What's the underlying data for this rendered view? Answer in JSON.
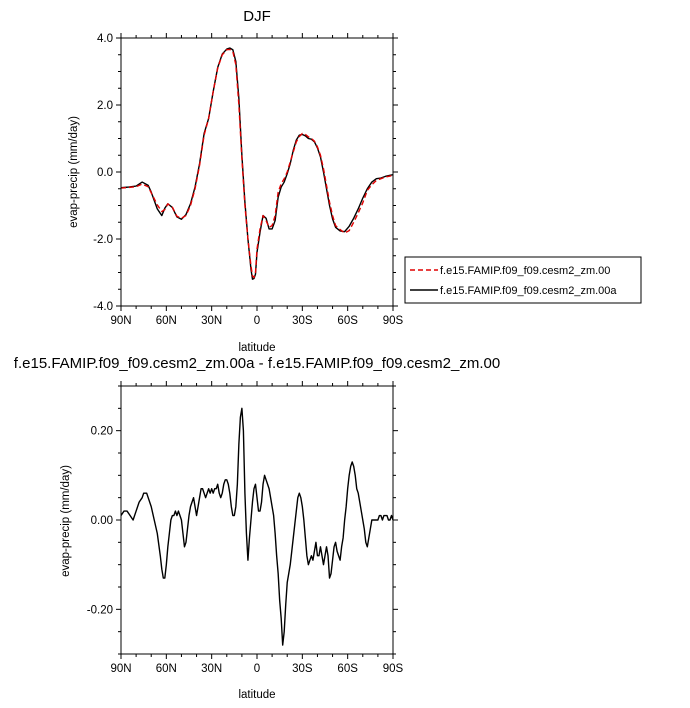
{
  "chart_data": [
    {
      "type": "line",
      "title": "DJF",
      "xlabel": "latitude",
      "ylabel": "evap-precip (mm/day)",
      "xlim": [
        90,
        -90
      ],
      "ylim": [
        -4.0,
        4.0
      ],
      "xticks": [
        {
          "value": 90,
          "label": "90N"
        },
        {
          "value": 60,
          "label": "60N"
        },
        {
          "value": 30,
          "label": "30N"
        },
        {
          "value": 0,
          "label": "0"
        },
        {
          "value": -30,
          "label": "30S"
        },
        {
          "value": -60,
          "label": "60S"
        },
        {
          "value": -90,
          "label": "90S"
        }
      ],
      "yticks": [
        {
          "value": 4.0,
          "label": "4.0"
        },
        {
          "value": 2.0,
          "label": "2.0"
        },
        {
          "value": 0.0,
          "label": "0.0"
        },
        {
          "value": -2.0,
          "label": "-2.0"
        },
        {
          "value": -4.0,
          "label": "-4.0"
        }
      ],
      "legend_position": "right",
      "series": [
        {
          "name": "f.e15.FAMIP.f09_f09.cesm2_zm.00",
          "color": "#e00000",
          "dash": "dashed",
          "x": [
            90,
            85,
            80,
            76,
            72,
            70,
            66,
            63,
            61,
            59,
            56,
            53,
            50,
            47,
            44,
            41,
            38,
            35,
            32,
            29,
            26,
            23,
            20,
            18,
            16,
            14,
            12,
            10,
            8,
            6,
            4,
            3,
            2,
            1,
            0,
            -2,
            -4,
            -6,
            -8,
            -10,
            -12,
            -14,
            -16,
            -18,
            -20,
            -22,
            -24,
            -26,
            -28,
            -30,
            -32,
            -34,
            -36,
            -38,
            -40,
            -42,
            -44,
            -46,
            -48,
            -50,
            -52,
            -55,
            -58,
            -61,
            -64,
            -67,
            -70,
            -73,
            -76,
            -79,
            -82,
            -85,
            -88,
            -90
          ],
          "y": [
            -0.48,
            -0.46,
            -0.44,
            -0.36,
            -0.44,
            -0.62,
            -0.98,
            -1.18,
            -1.12,
            -0.95,
            -1.05,
            -1.32,
            -1.38,
            -1.3,
            -1.0,
            -0.5,
            0.2,
            1.1,
            1.6,
            2.4,
            3.1,
            3.5,
            3.65,
            3.66,
            3.6,
            3.2,
            2.0,
            0.4,
            -1.0,
            -2.0,
            -2.8,
            -3.1,
            -3.15,
            -3.0,
            -2.3,
            -1.7,
            -1.3,
            -1.45,
            -1.65,
            -1.6,
            -1.3,
            -0.6,
            -0.35,
            -0.2,
            0.0,
            0.3,
            0.6,
            0.9,
            1.06,
            1.15,
            1.12,
            1.05,
            1.0,
            0.92,
            0.75,
            0.5,
            0.1,
            -0.4,
            -0.9,
            -1.3,
            -1.6,
            -1.72,
            -1.82,
            -1.75,
            -1.5,
            -1.22,
            -0.92,
            -0.55,
            -0.38,
            -0.25,
            -0.2,
            -0.15,
            -0.12,
            -0.1
          ]
        },
        {
          "name": "f.e15.FAMIP.f09_f09.cesm2_zm.00a",
          "color": "#000000",
          "dash": "solid",
          "x": [
            90,
            85,
            80,
            76,
            72,
            70,
            66,
            63,
            61,
            59,
            56,
            53,
            50,
            47,
            44,
            41,
            38,
            35,
            32,
            29,
            26,
            23,
            20,
            18,
            16,
            14,
            12,
            10,
            8,
            6,
            4,
            3,
            2,
            1,
            0,
            -2,
            -4,
            -6,
            -8,
            -10,
            -12,
            -14,
            -16,
            -18,
            -20,
            -22,
            -24,
            -26,
            -28,
            -30,
            -32,
            -34,
            -36,
            -38,
            -40,
            -42,
            -44,
            -46,
            -48,
            -50,
            -52,
            -55,
            -58,
            -61,
            -64,
            -67,
            -70,
            -73,
            -76,
            -79,
            -82,
            -85,
            -88,
            -90
          ],
          "y": [
            -0.47,
            -0.45,
            -0.42,
            -0.3,
            -0.4,
            -0.6,
            -1.1,
            -1.3,
            -1.08,
            -0.95,
            -1.06,
            -1.34,
            -1.41,
            -1.27,
            -0.95,
            -0.45,
            0.25,
            1.15,
            1.6,
            2.4,
            3.12,
            3.52,
            3.67,
            3.7,
            3.65,
            3.3,
            2.2,
            0.5,
            -0.9,
            -2.0,
            -2.9,
            -3.2,
            -3.18,
            -3.05,
            -2.4,
            -1.8,
            -1.3,
            -1.38,
            -1.7,
            -1.7,
            -1.45,
            -0.75,
            -0.45,
            -0.3,
            -0.05,
            0.25,
            0.65,
            0.95,
            1.1,
            1.12,
            1.08,
            1.0,
            0.98,
            0.9,
            0.72,
            0.45,
            0.0,
            -0.5,
            -1.0,
            -1.4,
            -1.65,
            -1.76,
            -1.78,
            -1.62,
            -1.38,
            -1.1,
            -0.78,
            -0.5,
            -0.3,
            -0.2,
            -0.18,
            -0.13,
            -0.1,
            -0.08
          ]
        }
      ]
    },
    {
      "type": "line",
      "title": "f.e15.FAMIP.f09_f09.cesm2_zm.00a - f.e15.FAMIP.f09_f09.cesm2_zm.00",
      "xlabel": "latitude",
      "ylabel": "evap-precip (mm/day)",
      "xlim": [
        90,
        -90
      ],
      "ylim": [
        -0.3,
        0.3
      ],
      "xticks": [
        {
          "value": 90,
          "label": "90N"
        },
        {
          "value": 60,
          "label": "60N"
        },
        {
          "value": 30,
          "label": "30N"
        },
        {
          "value": 0,
          "label": "0"
        },
        {
          "value": -30,
          "label": "30S"
        },
        {
          "value": -60,
          "label": "60S"
        },
        {
          "value": -90,
          "label": "90S"
        }
      ],
      "yticks": [
        {
          "value": 0.2,
          "label": "0.20"
        },
        {
          "value": 0.0,
          "label": "0.00"
        },
        {
          "value": -0.2,
          "label": "-0.20"
        }
      ],
      "series": [
        {
          "color": "#000000",
          "dash": "solid",
          "x": [
            90,
            88,
            86,
            84,
            82,
            80,
            78,
            76,
            75,
            73,
            72,
            70,
            68,
            66,
            64,
            63,
            62,
            61,
            60,
            59,
            58,
            57,
            56,
            55,
            54,
            53,
            52,
            51,
            50,
            49,
            48,
            47,
            46,
            45,
            44,
            43,
            42,
            41,
            40,
            39,
            38,
            37,
            36,
            35,
            34,
            33,
            32,
            31,
            30,
            29,
            28,
            27,
            26,
            25,
            24,
            23,
            22,
            21,
            20,
            19,
            18,
            17,
            16,
            15,
            14,
            13,
            12,
            11,
            10,
            9,
            8,
            7,
            6,
            5,
            4,
            3,
            2,
            1,
            0,
            -1,
            -2,
            -3,
            -4,
            -5,
            -6,
            -7,
            -8,
            -9,
            -10,
            -11,
            -12,
            -13,
            -14,
            -15,
            -16,
            -17,
            -18,
            -19,
            -20,
            -21,
            -22,
            -23,
            -24,
            -25,
            -26,
            -27,
            -28,
            -29,
            -30,
            -31,
            -32,
            -33,
            -34,
            -35,
            -36,
            -37,
            -38,
            -39,
            -40,
            -41,
            -42,
            -43,
            -44,
            -45,
            -46,
            -47,
            -48,
            -49,
            -50,
            -51,
            -52,
            -53,
            -54,
            -55,
            -56,
            -57,
            -58,
            -59,
            -60,
            -61,
            -62,
            -63,
            -64,
            -65,
            -66,
            -67,
            -68,
            -69,
            -70,
            -71,
            -72,
            -73,
            -74,
            -75,
            -76,
            -77,
            -78,
            -79,
            -80,
            -81,
            -82,
            -83,
            -84,
            -85,
            -86,
            -87,
            -88,
            -89,
            -90
          ],
          "y": [
            0.01,
            0.02,
            0.02,
            0.01,
            0.0,
            0.02,
            0.04,
            0.05,
            0.06,
            0.06,
            0.05,
            0.03,
            0.0,
            -0.03,
            -0.08,
            -0.11,
            -0.13,
            -0.13,
            -0.1,
            -0.06,
            -0.03,
            0.0,
            0.01,
            0.01,
            0.02,
            0.01,
            0.02,
            0.01,
            0.0,
            -0.03,
            -0.06,
            -0.05,
            -0.02,
            0.01,
            0.03,
            0.04,
            0.05,
            0.03,
            0.01,
            0.03,
            0.05,
            0.07,
            0.07,
            0.06,
            0.05,
            0.06,
            0.07,
            0.06,
            0.07,
            0.06,
            0.07,
            0.07,
            0.08,
            0.06,
            0.05,
            0.06,
            0.08,
            0.09,
            0.09,
            0.08,
            0.06,
            0.03,
            0.01,
            0.01,
            0.03,
            0.08,
            0.17,
            0.23,
            0.25,
            0.2,
            0.06,
            -0.03,
            -0.09,
            -0.04,
            0.0,
            0.04,
            0.07,
            0.08,
            0.05,
            0.02,
            0.02,
            0.04,
            0.08,
            0.1,
            0.09,
            0.08,
            0.07,
            0.05,
            0.03,
            0.01,
            -0.03,
            -0.08,
            -0.12,
            -0.18,
            -0.22,
            -0.28,
            -0.25,
            -0.19,
            -0.14,
            -0.12,
            -0.1,
            -0.07,
            -0.04,
            -0.01,
            0.02,
            0.05,
            0.06,
            0.05,
            0.03,
            0.0,
            -0.04,
            -0.08,
            -0.1,
            -0.09,
            -0.08,
            -0.09,
            -0.07,
            -0.05,
            -0.08,
            -0.08,
            -0.06,
            -0.08,
            -0.1,
            -0.08,
            -0.06,
            -0.08,
            -0.13,
            -0.12,
            -0.09,
            -0.06,
            -0.05,
            -0.07,
            -0.08,
            -0.09,
            -0.06,
            -0.04,
            0.0,
            0.03,
            0.07,
            0.1,
            0.12,
            0.13,
            0.12,
            0.1,
            0.07,
            0.06,
            0.04,
            0.02,
            0.0,
            -0.02,
            -0.05,
            -0.06,
            -0.04,
            -0.02,
            0.0,
            0.0,
            0.0,
            0.0,
            0.0,
            0.01,
            0.01,
            0.0,
            0.01,
            0.01,
            0.01,
            0.0,
            0.0,
            0.01,
            0.0
          ]
        }
      ]
    }
  ]
}
